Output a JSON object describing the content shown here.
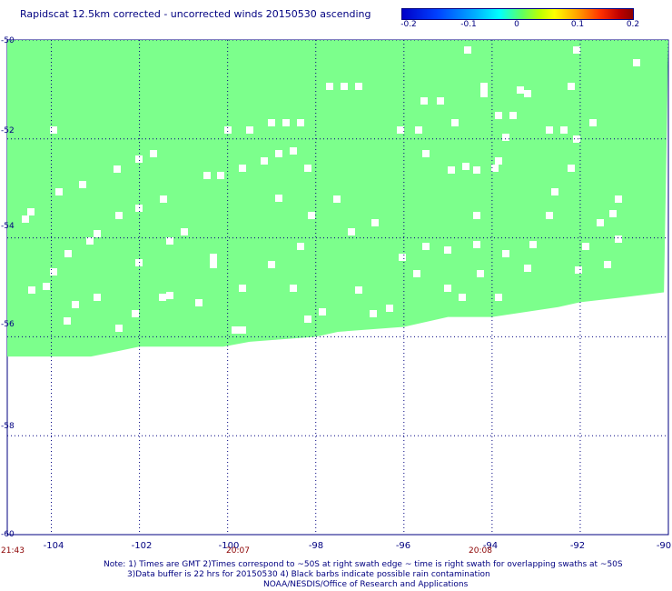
{
  "title": "Rapidscat 12.5km corrected - uncorrected winds 20150530 ascending",
  "colorbar": {
    "ticks": [
      "-0.2",
      "-0.1",
      "0",
      "0.1",
      "0.2"
    ],
    "tick_values": [
      -0.2,
      -0.1,
      0,
      0.1,
      0.2
    ],
    "range": [
      -0.2,
      0.2
    ],
    "colors": [
      "#0000c8",
      "#00ffff",
      "#7cff8c",
      "#ffff00",
      "#8b0000"
    ]
  },
  "map": {
    "lon_range": [
      -105,
      -90
    ],
    "lat_range": [
      -60,
      -50
    ],
    "lon_ticks": [
      "-104",
      "-102",
      "-100",
      "-98",
      "-96",
      "-94",
      "-92",
      "-90"
    ],
    "lat_ticks": [
      "-50",
      "-52",
      "-54",
      "-56",
      "-58",
      "-60"
    ],
    "lon_tick_values": [
      -104,
      -102,
      -100,
      -98,
      -96,
      -94,
      -92,
      -90
    ],
    "lat_tick_values": [
      -50,
      -52,
      -54,
      -56,
      -58,
      -60
    ],
    "grid": true,
    "swath_color": "#7cff8c",
    "swath_value": 0,
    "swath_southern_edge": [
      {
        "lon": -105.0,
        "lat": -56.4
      },
      {
        "lon": -104.0,
        "lat": -56.4
      },
      {
        "lon": -103.1,
        "lat": -56.4
      },
      {
        "lon": -102.0,
        "lat": -56.2
      },
      {
        "lon": -100.1,
        "lat": -56.2
      },
      {
        "lon": -99.5,
        "lat": -56.1
      },
      {
        "lon": -98.0,
        "lat": -56.0
      },
      {
        "lon": -97.5,
        "lat": -55.9
      },
      {
        "lon": -96.0,
        "lat": -55.8
      },
      {
        "lon": -95.0,
        "lat": -55.6
      },
      {
        "lon": -94.0,
        "lat": -55.6
      },
      {
        "lon": -92.5,
        "lat": -55.4
      },
      {
        "lon": -92.0,
        "lat": -55.3
      },
      {
        "lon": -91.0,
        "lat": -55.2
      },
      {
        "lon": -90.1,
        "lat": -55.1
      }
    ]
  },
  "time_labels": [
    "21:43",
    "20:07",
    "20:08"
  ],
  "time_label_lons": [
    -105.0,
    -100.0,
    -94.8
  ],
  "notes": [
    "Note: 1) Times are GMT 2)Times correspond to ~50S at right swath edge ~ time is right swath for overlapping swaths at ~50S",
    "3)Data buffer is 22 hrs for 20150530 4) Black barbs indicate possible rain contamination",
    "NOAA/NESDIS/Office of Research and Applications"
  ]
}
